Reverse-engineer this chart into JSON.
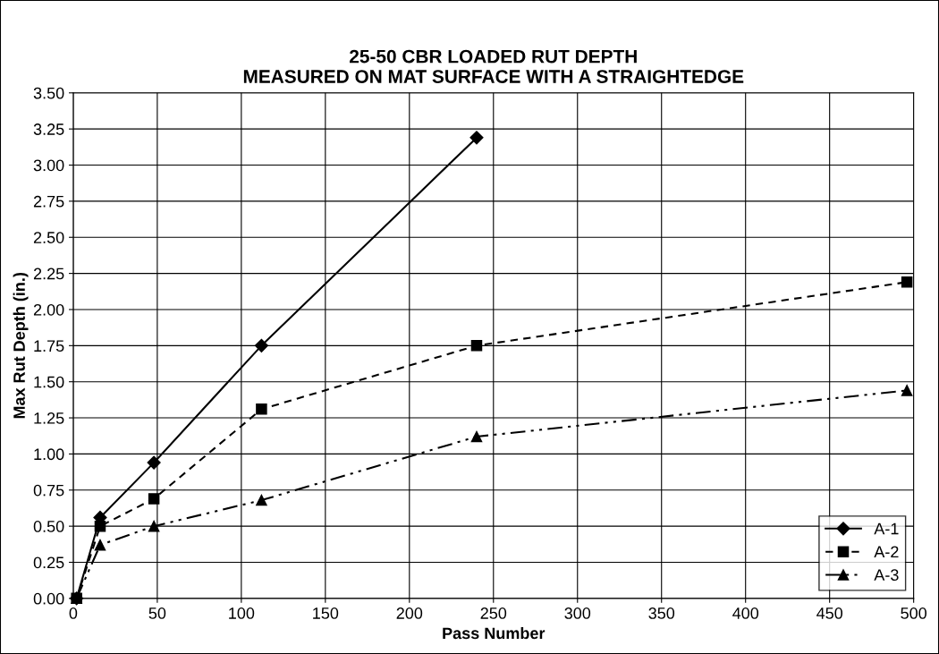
{
  "chart_data": {
    "type": "line",
    "title": "25-50 CBR LOADED RUT DEPTH\nMEASURED ON MAT SURFACE WITH A STRAIGHTEDGE",
    "xlabel": "Pass Number",
    "ylabel": "Max Rut Depth (in.)",
    "xlim": [
      0,
      500
    ],
    "xticks": [
      0,
      50,
      100,
      150,
      200,
      250,
      300,
      350,
      400,
      450,
      500
    ],
    "ylim": [
      0,
      3.5
    ],
    "yticks": [
      {
        "value": 0,
        "label": "0.00"
      },
      {
        "value": 0.25,
        "label": "0.25"
      },
      {
        "value": 0.5,
        "label": "0.50"
      },
      {
        "value": 0.75,
        "label": "0.75"
      },
      {
        "value": 1,
        "label": "1.00"
      },
      {
        "value": 1.25,
        "label": "1.25"
      },
      {
        "value": 1.5,
        "label": "1.50"
      },
      {
        "value": 1.75,
        "label": "1.75"
      },
      {
        "value": 2,
        "label": "2.00"
      },
      {
        "value": 2.25,
        "label": "2.25"
      },
      {
        "value": 2.5,
        "label": "2.50"
      },
      {
        "value": 2.75,
        "label": "2.75"
      },
      {
        "value": 3,
        "label": "3.00"
      },
      {
        "value": 3.25,
        "label": "3.25"
      },
      {
        "value": 3.5,
        "label": "3.50"
      }
    ],
    "grid": true,
    "legend": "bottom right",
    "series": [
      {
        "name": "A-1",
        "color": "#000000",
        "marker": "diamond",
        "line_style": "solid",
        "x": [
          2,
          16,
          48,
          112,
          240
        ],
        "values": [
          0,
          0.56,
          0.94,
          1.75,
          3.19
        ]
      },
      {
        "name": "A-2",
        "color": "#000000",
        "marker": "square",
        "line_style": "dashed",
        "x": [
          2,
          16,
          48,
          112,
          240,
          496
        ],
        "values": [
          0,
          0.5,
          0.69,
          1.31,
          1.75,
          2.19
        ]
      },
      {
        "name": "A-3",
        "color": "#000000",
        "marker": "triangle",
        "line_style": "dashdotdot",
        "x": [
          2,
          16,
          48,
          112,
          240,
          496
        ],
        "values": [
          0,
          0.37,
          0.5,
          0.68,
          1.12,
          1.44
        ]
      }
    ]
  }
}
